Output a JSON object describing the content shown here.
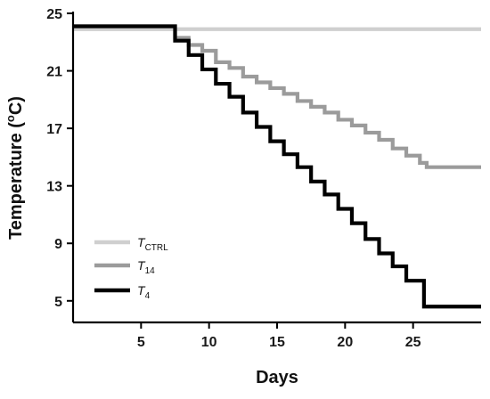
{
  "chart_data": {
    "type": "line",
    "xlabel": "Days",
    "ylabel_parts": [
      "Temperature (",
      "o",
      "C)"
    ],
    "xlim": [
      0,
      30
    ],
    "ylim": [
      3.5,
      25
    ],
    "xticks": [
      5,
      10,
      15,
      20,
      25
    ],
    "yticks": [
      5,
      9,
      13,
      17,
      21,
      25
    ],
    "grid": false,
    "legend_position": "lower-left",
    "series": [
      {
        "name": "T_CTRL",
        "label_main": "T",
        "label_sub": "CTRL",
        "color": "#cfcfcf",
        "x": [
          0,
          2,
          4,
          6,
          8,
          10,
          12,
          14,
          16,
          18,
          20,
          22,
          24,
          26,
          28,
          30
        ],
        "y": [
          23.9,
          23.9,
          23.9,
          23.9,
          23.9,
          23.9,
          23.9,
          23.9,
          23.9,
          23.9,
          23.9,
          23.9,
          23.9,
          23.9,
          23.9,
          23.9
        ]
      },
      {
        "name": "T_14",
        "label_main": "T",
        "label_sub": "14",
        "color": "#9b9b9b",
        "x": [
          0,
          6.7,
          7.5,
          8.5,
          9.5,
          10.5,
          11.5,
          12.5,
          13.5,
          14.5,
          15.5,
          16.5,
          17.5,
          18.5,
          19.5,
          20.5,
          21.5,
          22.5,
          23.5,
          24.5,
          25.5,
          26,
          30
        ],
        "y": [
          24.1,
          24.1,
          23.3,
          22.8,
          22.4,
          21.6,
          21.2,
          20.6,
          20.2,
          19.8,
          19.4,
          18.9,
          18.5,
          18.1,
          17.6,
          17.2,
          16.7,
          16.2,
          15.6,
          15.1,
          14.6,
          14.3,
          14.3
        ]
      },
      {
        "name": "T_4",
        "label_main": "T",
        "label_sub": "4",
        "color": "#000000",
        "x": [
          0,
          6.7,
          7.5,
          8.5,
          9.5,
          10.5,
          11.5,
          12.5,
          13.5,
          14.5,
          15.5,
          16.5,
          17.5,
          18.5,
          19.5,
          20.5,
          21.5,
          22.5,
          23.5,
          24.5,
          25.8,
          30
        ],
        "y": [
          24.1,
          24.1,
          23.1,
          22.1,
          21.1,
          20.1,
          19.2,
          18.1,
          17.1,
          16.1,
          15.2,
          14.3,
          13.3,
          12.4,
          11.4,
          10.4,
          9.3,
          8.3,
          7.4,
          6.4,
          4.6,
          4.6
        ]
      }
    ]
  }
}
